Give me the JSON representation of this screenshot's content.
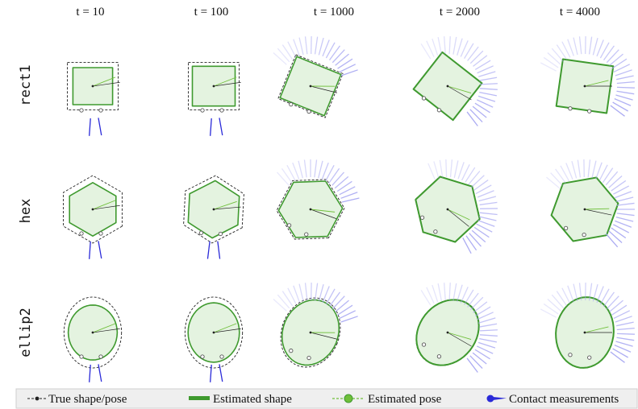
{
  "columns": [
    {
      "label": "t = 10"
    },
    {
      "label": "t = 100"
    },
    {
      "label": "t = 1000"
    },
    {
      "label": "t = 2000"
    },
    {
      "label": "t = 4000"
    }
  ],
  "rows": [
    {
      "label": "rect1",
      "shape": "rect"
    },
    {
      "label": "hex",
      "shape": "hex"
    },
    {
      "label": "ellip2",
      "shape": "ellipse"
    }
  ],
  "legend": {
    "true_shape": "True shape/pose",
    "estimated_shape": "Estimated shape",
    "estimated_pose": "Estimated pose",
    "contact_measurements": "Contact measurements"
  },
  "colors": {
    "true_shape": "#222222",
    "estimated_shape": "#3f9a2f",
    "estimated_fill": "#e4f3e0",
    "estimated_pose": "#6fbf3a",
    "contact": "#2a2ad8",
    "contact_light": "#a9a9f2"
  }
}
